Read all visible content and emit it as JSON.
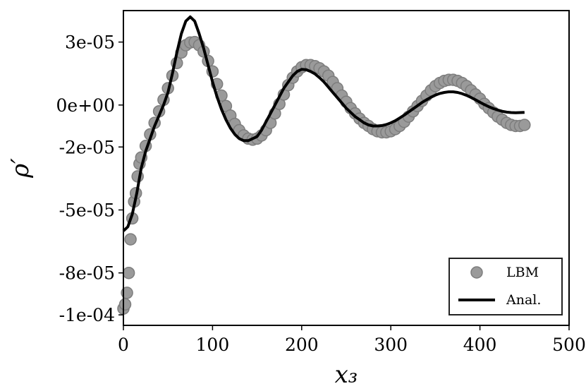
{
  "chart_data": {
    "type": "line",
    "title": "",
    "xlabel": "x₃",
    "ylabel": "ρ′",
    "xlim": [
      0,
      500
    ],
    "ylim": [
      -0.000105,
      4.5e-05
    ],
    "xticks": [
      0,
      100,
      200,
      300,
      400,
      500
    ],
    "xtick_labels": [
      "0",
      "100",
      "200",
      "300",
      "400",
      "500"
    ],
    "yticks": [
      3e-05,
      0.0,
      -2e-05,
      -5e-05,
      -8e-05,
      -0.0001
    ],
    "ytick_labels": [
      "3e-05",
      "0e+00",
      "-2e-05",
      "-5e-05",
      "-8e-05",
      "-1e-04"
    ],
    "grid": false,
    "legend_position": "bottom-right",
    "series": [
      {
        "name": "LBM",
        "style": "scatter",
        "color": "#9a9a9a",
        "x": [
          0,
          2,
          4,
          6,
          8,
          10,
          12,
          14,
          16,
          18,
          20,
          25,
          30,
          35,
          40,
          45,
          50,
          55,
          60,
          65,
          70,
          75,
          80,
          85,
          90,
          95,
          100,
          105,
          110,
          115,
          120,
          125,
          130,
          135,
          140,
          145,
          150,
          155,
          160,
          165,
          170,
          175,
          180,
          185,
          190,
          195,
          200,
          205,
          210,
          215,
          220,
          225,
          230,
          235,
          240,
          245,
          250,
          255,
          260,
          265,
          270,
          275,
          280,
          285,
          290,
          295,
          300,
          305,
          310,
          315,
          320,
          325,
          330,
          335,
          340,
          345,
          350,
          355,
          360,
          365,
          370,
          375,
          380,
          385,
          390,
          395,
          400,
          405,
          410,
          415,
          420,
          425,
          430,
          435,
          440,
          445,
          450
        ],
        "y": [
          -9.7e-05,
          -9.5e-05,
          -8.95e-05,
          -8e-05,
          -6.4e-05,
          -5.4e-05,
          -4.6e-05,
          -4.2e-05,
          -3.4e-05,
          -2.8e-05,
          -2.5e-05,
          -1.95e-05,
          -1.4e-05,
          -8.5e-06,
          -3e-06,
          2.5e-06,
          8e-06,
          1.4e-05,
          2e-05,
          2.5e-05,
          2.85e-05,
          2.98e-05,
          3e-05,
          2.85e-05,
          2.55e-05,
          2.1e-05,
          1.6e-05,
          1e-05,
          4.5e-06,
          -5e-07,
          -5e-06,
          -9e-06,
          -1.2e-05,
          -1.45e-05,
          -1.6e-05,
          -1.65e-05,
          -1.6e-05,
          -1.45e-05,
          -1.2e-05,
          -8.5e-06,
          -4e-06,
          5e-07,
          5e-06,
          9.5e-06,
          1.3e-05,
          1.6e-05,
          1.8e-05,
          1.9e-05,
          1.9e-05,
          1.85e-05,
          1.75e-05,
          1.6e-05,
          1.4e-05,
          1.1e-05,
          8e-06,
          4.5e-06,
          1.5e-06,
          -1.5e-06,
          -4e-06,
          -6.5e-06,
          -8.5e-06,
          -1e-05,
          -1.15e-05,
          -1.25e-05,
          -1.3e-05,
          -1.3e-05,
          -1.25e-05,
          -1.15e-05,
          -1e-05,
          -8e-06,
          -5.5e-06,
          -3e-06,
          -5e-07,
          2e-06,
          4.5e-06,
          7e-06,
          9e-06,
          1.05e-05,
          1.15e-05,
          1.2e-05,
          1.2e-05,
          1.15e-05,
          1.05e-05,
          9e-06,
          7e-06,
          5e-06,
          3e-06,
          5e-07,
          -1.5e-06,
          -3.5e-06,
          -5.5e-06,
          -7e-06,
          -8.5e-06,
          -9.5e-06,
          -1e-05,
          -1e-05,
          -9.5e-06
        ]
      },
      {
        "name": "Anal.",
        "style": "line",
        "color": "#000000",
        "x": [
          0,
          5,
          10,
          15,
          20,
          25,
          30,
          35,
          40,
          45,
          50,
          55,
          60,
          65,
          70,
          75,
          80,
          85,
          90,
          95,
          100,
          105,
          110,
          115,
          120,
          125,
          130,
          135,
          140,
          145,
          150,
          155,
          160,
          165,
          170,
          175,
          180,
          185,
          190,
          195,
          200,
          205,
          210,
          215,
          220,
          225,
          230,
          235,
          240,
          245,
          250,
          255,
          260,
          265,
          270,
          275,
          280,
          285,
          290,
          295,
          300,
          305,
          310,
          315,
          320,
          325,
          330,
          335,
          340,
          345,
          350,
          355,
          360,
          365,
          370,
          375,
          380,
          385,
          390,
          395,
          400,
          405,
          410,
          415,
          420,
          425,
          430,
          435,
          440,
          445,
          450
        ],
        "y": [
          -6e-05,
          -5.8e-05,
          -5.2e-05,
          -4.2e-05,
          -3e-05,
          -2.2e-05,
          -1.6e-05,
          -1e-05,
          -5e-06,
          0.0,
          6e-06,
          1.5e-05,
          2.5e-05,
          3.4e-05,
          4e-05,
          4.2e-05,
          4e-05,
          3.4e-05,
          2.7e-05,
          1.9e-05,
          1.1e-05,
          4e-06,
          -2e-06,
          -7e-06,
          -1.1e-05,
          -1.4e-05,
          -1.6e-05,
          -1.7e-05,
          -1.7e-05,
          -1.6e-05,
          -1.5e-05,
          -1.2e-05,
          -8e-06,
          -4e-06,
          0.0,
          4e-06,
          8e-06,
          1.1e-05,
          1.4e-05,
          1.6e-05,
          1.7e-05,
          1.68e-05,
          1.6e-05,
          1.48e-05,
          1.3e-05,
          1.1e-05,
          8.5e-06,
          6e-06,
          3.5e-06,
          1e-06,
          -1.5e-06,
          -3.5e-06,
          -5.5e-06,
          -7e-06,
          -8.5e-06,
          -9.5e-06,
          -1e-05,
          -1e-05,
          -9.8e-06,
          -9.3e-06,
          -8.5e-06,
          -7.5e-06,
          -6.2e-06,
          -4.8e-06,
          -3.3e-06,
          -1.8e-06,
          -3e-07,
          1.2e-06,
          2.5e-06,
          3.7e-06,
          4.7e-06,
          5.5e-06,
          6e-06,
          6.3e-06,
          6.3e-06,
          6e-06,
          5.4e-06,
          4.6e-06,
          3.6e-06,
          2.5e-06,
          1.3e-06,
          2e-07,
          -8e-07,
          -1.7e-06,
          -2.4e-06,
          -3e-06,
          -3.4e-06,
          -3.6e-06,
          -3.7e-06,
          -3.6e-06,
          -3.5e-06
        ]
      }
    ]
  }
}
